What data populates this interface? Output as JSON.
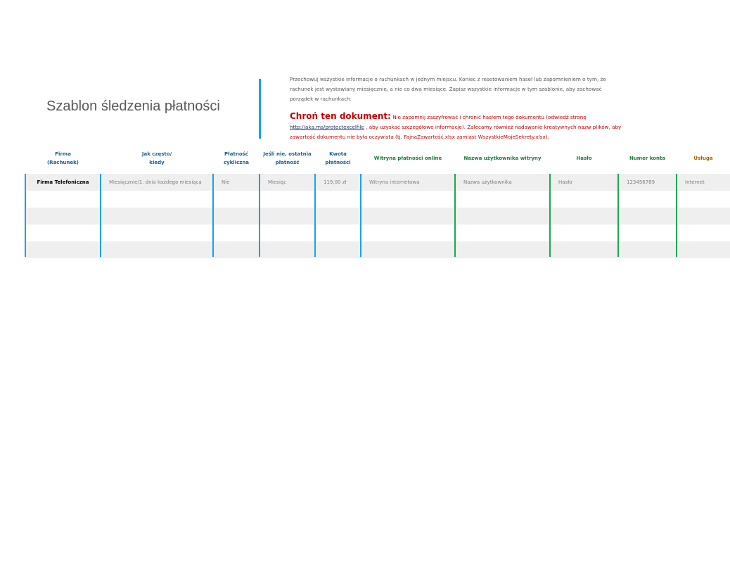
{
  "header": {
    "title": "Szablon śledzenia płatności",
    "intro": "Przechowuj wszystkie informacje o rachunkach w jednym miejscu. Koniec z resetowaniem haseł lub zapomnieniem o tym, że rachunek jest wystawiany miesięcznie, a nie co dwa miesiące. Zapisz wszystkie informacje w tym szablonie, aby zachować porządek w rachunkach.",
    "protect_label": "Chroń ten dokument:",
    "protect_text": "Nie zapomnij zaszyfrować i chronić hasłem tego dokumentu (odwiedź stronę",
    "protect_link": "http://aka.ms/protectexcelfile",
    "protect_after": ", aby uzyskać szczegółowe informacje). Zalecamy również nadawanie kreatywnych nazw plików, aby zawartość dokumentu nie była oczywista (tj. FajnaZawartość.xlsx zamiast WszystkieMojeSekrety.xlsx)."
  },
  "table": {
    "columns": [
      "Firma\n(Rachunek)",
      "Jak często/\nkiedy",
      "Płatność\ncykliczna",
      "Jeśli nie, ostatnia\npłatność",
      "Kwota\npłatności",
      "Witryna płatności online",
      "Nazwa użytkownika witryny",
      "Hasło",
      "Numer konta",
      "Usługa"
    ],
    "rows": [
      [
        "Firma Telefoniczna",
        "Miesięcznie/1. dnia każdego miesiąca",
        "Nie",
        "Miesiąc",
        "119,00 zł",
        "Witryna internetowa",
        "Nazwa użytkownika",
        "Hasło",
        "123456789",
        "Internet"
      ]
    ]
  }
}
